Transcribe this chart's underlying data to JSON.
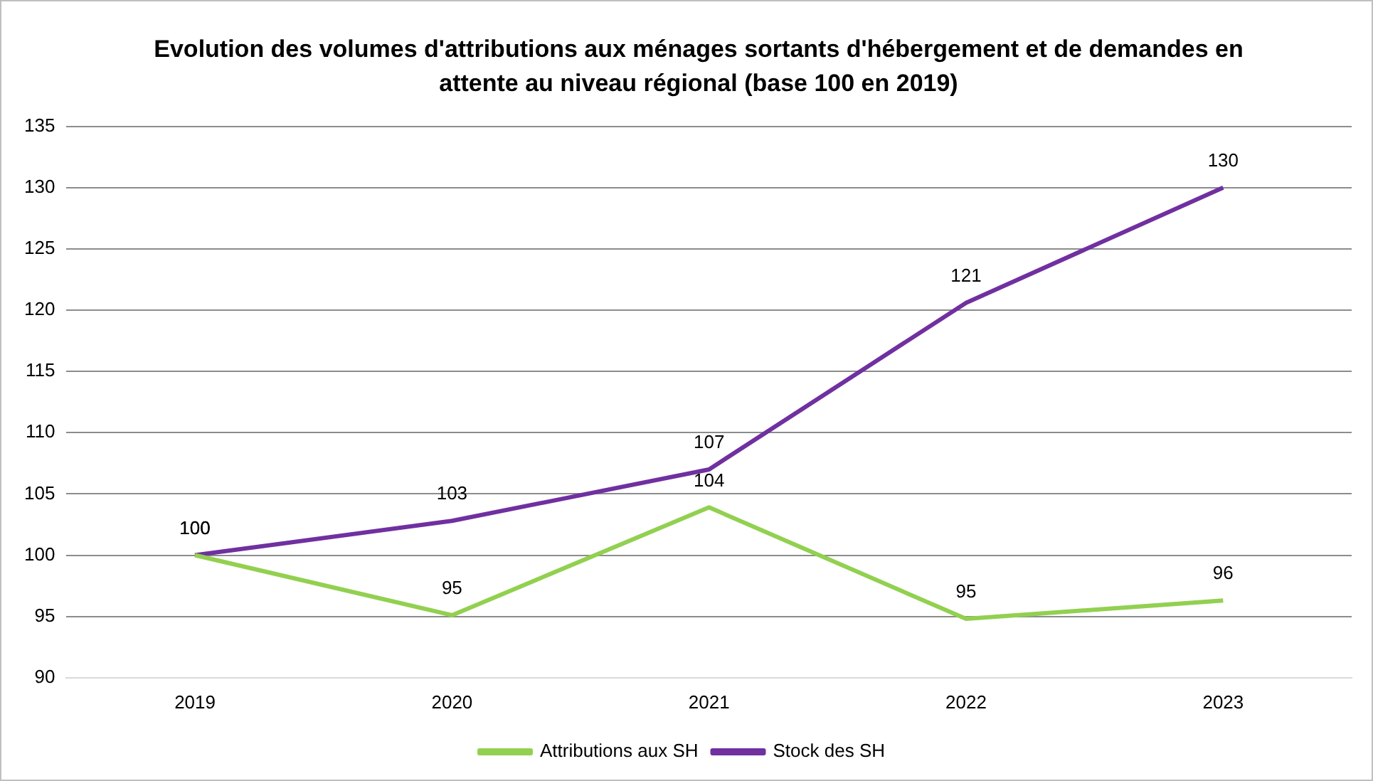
{
  "chart_data": {
    "type": "line",
    "title": "Evolution des volumes d'attributions aux ménages sortants d'hébergement et de demandes en attente au niveau régional (base 100 en 2019)",
    "categories": [
      "2019",
      "2020",
      "2021",
      "2022",
      "2023"
    ],
    "series": [
      {
        "name": "Attributions aux SH",
        "color": "#92d050",
        "values": [
          100,
          95.1,
          103.9,
          94.8,
          96.3
        ],
        "value_labels": [
          "100",
          "95",
          "104",
          "95",
          "96"
        ]
      },
      {
        "name": "Stock des SH",
        "color": "#7030a0",
        "values": [
          100,
          102.8,
          107,
          120.6,
          130
        ],
        "value_labels": [
          "100",
          "103",
          "107",
          "121",
          "130"
        ]
      }
    ],
    "ylim": [
      90,
      135
    ],
    "yticks": [
      90,
      95,
      100,
      105,
      110,
      115,
      120,
      125,
      130,
      135
    ],
    "grid": "y",
    "legend": "bottom",
    "marker": "none",
    "line_style": "solid"
  }
}
